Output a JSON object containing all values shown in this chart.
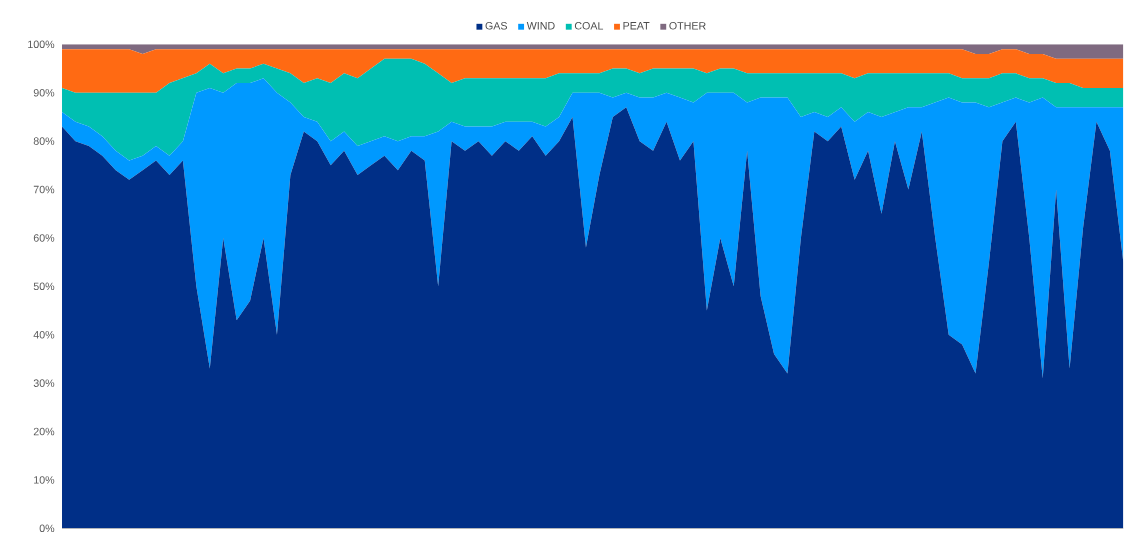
{
  "chart_data": {
    "type": "area",
    "stacked": true,
    "legend": "top",
    "categories": [
      null,
      null,
      null,
      null,
      null,
      null,
      null,
      null,
      null,
      null,
      null,
      null,
      null,
      null,
      null,
      null,
      null,
      null,
      null,
      null,
      null,
      null,
      null,
      null,
      null,
      null,
      null,
      null,
      null,
      null,
      null,
      null,
      null,
      null,
      null,
      null,
      null,
      null,
      null,
      null,
      null,
      null,
      null,
      null,
      null,
      null,
      null,
      null,
      null,
      null,
      null,
      null,
      null,
      null,
      null,
      null,
      null,
      null,
      null,
      null,
      null,
      null,
      null,
      null,
      null,
      null,
      null,
      null,
      null,
      null,
      null,
      null,
      null,
      null,
      null,
      null,
      null,
      null,
      null,
      null
    ],
    "ylim": [
      0,
      100
    ],
    "yticks": [
      {
        "value": 0,
        "label": "0%"
      },
      {
        "value": 10,
        "label": "10%"
      },
      {
        "value": 20,
        "label": "20%"
      },
      {
        "value": 30,
        "label": "30%"
      },
      {
        "value": 40,
        "label": "40%"
      },
      {
        "value": 50,
        "label": "50%"
      },
      {
        "value": 60,
        "label": "60%"
      },
      {
        "value": 70,
        "label": "70%"
      },
      {
        "value": 80,
        "label": "80%"
      },
      {
        "value": 90,
        "label": "90%"
      },
      {
        "value": 100,
        "label": "100%"
      }
    ],
    "series": [
      {
        "name": "GAS",
        "color": "#002f87",
        "values": [
          83,
          80,
          79,
          77,
          74,
          72,
          74,
          76,
          73,
          76,
          50,
          33,
          60,
          43,
          47,
          60,
          40,
          73,
          82,
          80,
          75,
          78,
          73,
          75,
          77,
          74,
          78,
          76,
          50,
          80,
          78,
          80,
          77,
          80,
          78,
          81,
          77,
          80,
          85,
          58,
          73,
          85,
          87,
          80,
          78,
          84,
          76,
          80,
          45,
          60,
          50,
          78,
          48,
          36,
          32,
          60,
          82,
          80,
          83,
          72,
          78,
          65,
          80,
          70,
          82,
          60,
          40,
          38,
          32,
          55,
          80,
          84,
          60,
          31,
          70,
          33,
          62,
          84,
          78,
          55
        ]
      },
      {
        "name": "WIND",
        "color": "#0099ff",
        "values": [
          3,
          4,
          4,
          4,
          4,
          4,
          3,
          3,
          4,
          4,
          40,
          58,
          30,
          49,
          45,
          33,
          50,
          15,
          3,
          4,
          5,
          4,
          6,
          5,
          4,
          6,
          3,
          5,
          32,
          4,
          5,
          3,
          6,
          4,
          6,
          3,
          6,
          5,
          5,
          32,
          17,
          4,
          3,
          9,
          11,
          6,
          13,
          8,
          45,
          30,
          40,
          10,
          41,
          53,
          57,
          25,
          4,
          5,
          4,
          12,
          8,
          20,
          6,
          17,
          5,
          28,
          49,
          50,
          56,
          32,
          8,
          5,
          28,
          58,
          17,
          54,
          25,
          3,
          9,
          32
        ]
      },
      {
        "name": "COAL",
        "color": "#00bfb2",
        "values": [
          5,
          6,
          7,
          9,
          12,
          14,
          13,
          11,
          15,
          13,
          4,
          5,
          4,
          3,
          3,
          3,
          5,
          6,
          7,
          9,
          12,
          12,
          14,
          15,
          16,
          17,
          16,
          15,
          12,
          8,
          10,
          10,
          10,
          9,
          9,
          9,
          10,
          9,
          4,
          4,
          4,
          6,
          5,
          5,
          6,
          5,
          6,
          7,
          4,
          5,
          5,
          6,
          5,
          5,
          5,
          9,
          8,
          9,
          7,
          9,
          8,
          9,
          8,
          7,
          7,
          6,
          5,
          5,
          5,
          6,
          6,
          5,
          5,
          4,
          5,
          5,
          4,
          4,
          4,
          4
        ]
      },
      {
        "name": "PEAT",
        "color": "#ff6a13",
        "values": [
          8,
          9,
          9,
          9,
          9,
          9,
          8,
          9,
          7,
          6,
          5,
          3,
          5,
          4,
          4,
          3,
          4,
          5,
          7,
          6,
          7,
          5,
          6,
          4,
          2,
          2,
          2,
          3,
          5,
          7,
          6,
          6,
          6,
          6,
          6,
          6,
          6,
          5,
          5,
          5,
          5,
          4,
          4,
          5,
          4,
          4,
          4,
          4,
          5,
          4,
          4,
          5,
          5,
          5,
          5,
          5,
          5,
          5,
          5,
          6,
          5,
          5,
          5,
          5,
          5,
          5,
          5,
          6,
          5,
          5,
          5,
          5,
          5,
          5,
          5,
          5,
          6,
          6,
          6,
          6
        ]
      },
      {
        "name": "OTHER",
        "color": "#7f6a80",
        "values": [
          1,
          1,
          1,
          1,
          1,
          1,
          2,
          1,
          1,
          1,
          1,
          1,
          1,
          1,
          1,
          1,
          1,
          1,
          1,
          1,
          1,
          1,
          1,
          1,
          1,
          1,
          1,
          1,
          1,
          1,
          1,
          1,
          1,
          1,
          1,
          1,
          1,
          1,
          1,
          1,
          1,
          1,
          1,
          1,
          1,
          1,
          1,
          1,
          1,
          1,
          1,
          1,
          1,
          1,
          1,
          1,
          1,
          1,
          1,
          1,
          1,
          1,
          1,
          1,
          1,
          1,
          1,
          1,
          2,
          2,
          1,
          1,
          2,
          2,
          3,
          3,
          3,
          3,
          3,
          3
        ]
      }
    ]
  }
}
